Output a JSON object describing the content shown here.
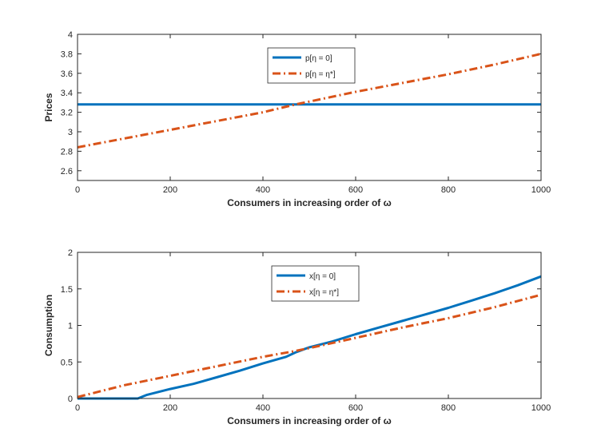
{
  "chart_data": [
    {
      "type": "line",
      "title": "",
      "xlabel": "Consumers in increasing order of ω",
      "ylabel": "Prices",
      "xlim": [
        0,
        1000
      ],
      "ylim": [
        2.5,
        4
      ],
      "xticks": [
        0,
        200,
        400,
        600,
        800,
        1000
      ],
      "xtick_labels": [
        "0",
        "200",
        "400",
        "600",
        "800",
        "1000"
      ],
      "yticks": [
        2.6,
        2.8,
        3,
        3.2,
        3.4,
        3.6,
        3.8,
        4
      ],
      "ytick_labels": [
        "2.6",
        "2.8",
        "3",
        "3.2",
        "3.4",
        "3.6",
        "3.8",
        "4"
      ],
      "legend_position": "top-center",
      "series": [
        {
          "name": "p[η = 0]",
          "color": "#0072BD",
          "style": "solid",
          "x": [
            0,
            1000
          ],
          "y": [
            3.28,
            3.28
          ]
        },
        {
          "name": "p[η = η*]",
          "color": "#D95319",
          "style": "dashdot",
          "x": [
            0,
            100,
            200,
            300,
            400,
            470,
            500,
            600,
            700,
            800,
            900,
            1000
          ],
          "y": [
            2.84,
            2.93,
            3.02,
            3.11,
            3.2,
            3.28,
            3.31,
            3.41,
            3.5,
            3.59,
            3.69,
            3.8
          ]
        }
      ]
    },
    {
      "type": "line",
      "title": "",
      "xlabel": "Consumers in increasing order of ω",
      "ylabel": "Consumption",
      "xlim": [
        0,
        1000
      ],
      "ylim": [
        0,
        2
      ],
      "xticks": [
        0,
        200,
        400,
        600,
        800,
        1000
      ],
      "xtick_labels": [
        "0",
        "200",
        "400",
        "600",
        "800",
        "1000"
      ],
      "yticks": [
        0,
        0.5,
        1,
        1.5,
        2
      ],
      "ytick_labels": [
        "0",
        "0.5",
        "1",
        "1.5",
        "2"
      ],
      "legend_position": "top-center",
      "series": [
        {
          "name": "x[η = 0]",
          "color": "#0072BD",
          "style": "solid",
          "x": [
            0,
            100,
            130,
            150,
            200,
            250,
            300,
            350,
            400,
            450,
            470,
            500,
            550,
            600,
            650,
            700,
            750,
            800,
            850,
            900,
            950,
            1000
          ],
          "y": [
            0,
            0,
            0,
            0.05,
            0.13,
            0.2,
            0.29,
            0.38,
            0.48,
            0.57,
            0.63,
            0.7,
            0.78,
            0.88,
            0.97,
            1.06,
            1.15,
            1.24,
            1.34,
            1.44,
            1.55,
            1.67
          ]
        },
        {
          "name": "x[η = η*]",
          "color": "#D95319",
          "style": "dashdot",
          "x": [
            0,
            100,
            200,
            300,
            400,
            470,
            500,
            600,
            700,
            800,
            900,
            1000
          ],
          "y": [
            0.02,
            0.18,
            0.31,
            0.44,
            0.57,
            0.65,
            0.69,
            0.83,
            0.97,
            1.1,
            1.25,
            1.42
          ]
        }
      ]
    }
  ]
}
